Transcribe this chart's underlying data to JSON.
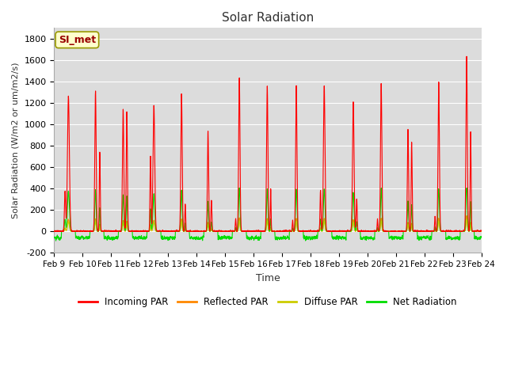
{
  "title": "Solar Radiation",
  "xlabel": "Time",
  "ylabel": "Solar Radiation (W/m2 or um/m2/s)",
  "ylim": [
    -200,
    1900
  ],
  "yticks": [
    -200,
    0,
    200,
    400,
    600,
    800,
    1000,
    1200,
    1400,
    1600,
    1800
  ],
  "xtick_labels": [
    "Feb 9",
    "Feb 10",
    "Feb 11",
    "Feb 12",
    "Feb 13",
    "Feb 14",
    "Feb 15",
    "Feb 16",
    "Feb 17",
    "Feb 18",
    "Feb 19",
    "Feb 20",
    "Feb 21",
    "Feb 22",
    "Feb 23",
    "Feb 24"
  ],
  "bg_color": "#dcdcdc",
  "fig_color": "#ffffff",
  "annotation_text": "SI_met",
  "annotation_bg": "#ffffcc",
  "annotation_border": "#999900",
  "annotation_text_color": "#990000",
  "colors": {
    "incoming": "#ff0000",
    "reflected": "#ff8800",
    "diffuse": "#cccc00",
    "net": "#00dd00"
  },
  "legend_labels": [
    "Incoming PAR",
    "Reflected PAR",
    "Diffuse PAR",
    "Net Radiation"
  ],
  "n_days": 15,
  "pts_per_day": 288
}
